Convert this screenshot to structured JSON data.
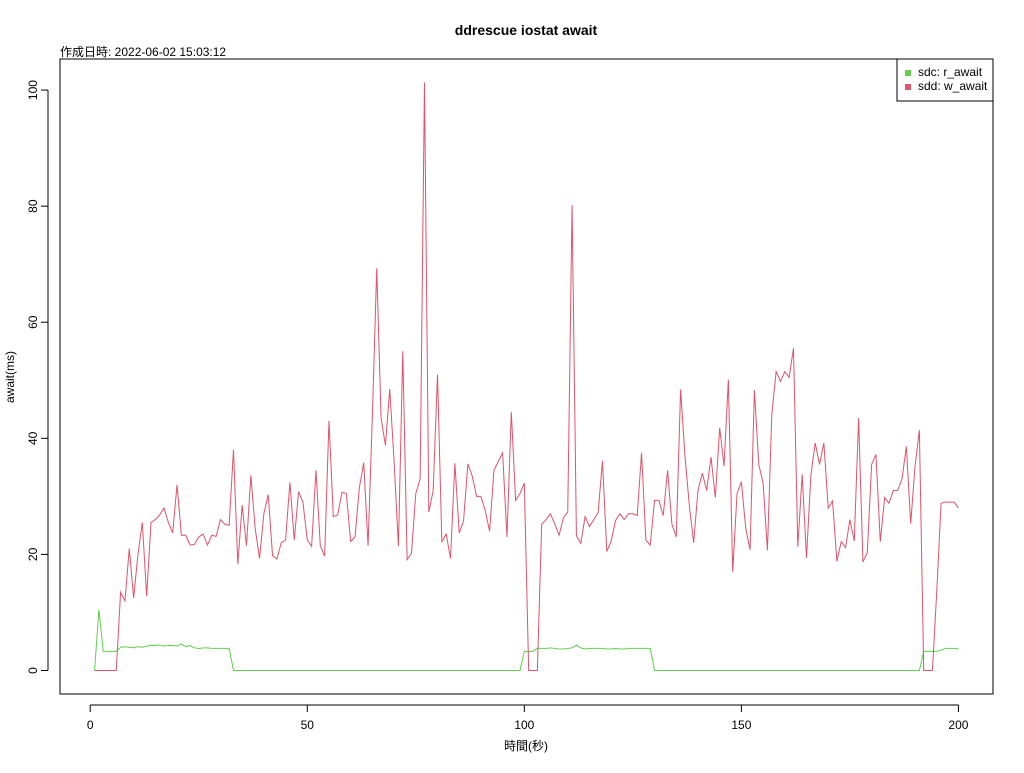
{
  "chart_data": {
    "type": "line",
    "title": "ddrescue iostat await",
    "subtitle": "作成日時: 2022-06-02 15:03:12",
    "x_label": "時間(秒)",
    "y_label": "await(ms)",
    "x": [
      1,
      2,
      3,
      4,
      5,
      6,
      7,
      8,
      9,
      10,
      11,
      12,
      13,
      14,
      15,
      16,
      17,
      18,
      19,
      20,
      21,
      22,
      23,
      24,
      25,
      26,
      27,
      28,
      29,
      30,
      31,
      32,
      33,
      34,
      35,
      36,
      37,
      38,
      39,
      40,
      41,
      42,
      43,
      44,
      45,
      46,
      47,
      48,
      49,
      50,
      51,
      52,
      53,
      54,
      55,
      56,
      57,
      58,
      59,
      60,
      61,
      62,
      63,
      64,
      65,
      66,
      67,
      68,
      69,
      70,
      71,
      72,
      73,
      74,
      75,
      76,
      77,
      78,
      79,
      80,
      81,
      82,
      83,
      84,
      85,
      86,
      87,
      88,
      89,
      90,
      91,
      92,
      93,
      94,
      95,
      96,
      97,
      98,
      99,
      100,
      101,
      102,
      103,
      104,
      105,
      106,
      107,
      108,
      109,
      110,
      111,
      112,
      113,
      114,
      115,
      116,
      117,
      118,
      119,
      120,
      121,
      122,
      123,
      124,
      125,
      126,
      127,
      128,
      129,
      130,
      131,
      132,
      133,
      134,
      135,
      136,
      137,
      138,
      139,
      140,
      141,
      142,
      143,
      144,
      145,
      146,
      147,
      148,
      149,
      150,
      151,
      152,
      153,
      154,
      155,
      156,
      157,
      158,
      159,
      160,
      161,
      162,
      163,
      164,
      165,
      166,
      167,
      168,
      169,
      170,
      171,
      172,
      173,
      174,
      175,
      176,
      177,
      178,
      179,
      180,
      181,
      182,
      183,
      184,
      185,
      186,
      187,
      188,
      189,
      190,
      191,
      192,
      193,
      194,
      195,
      196,
      197,
      198,
      199,
      200
    ],
    "series": [
      {
        "name": "sdc: r_await",
        "color": "#61D04F",
        "values": [
          0,
          10.5,
          3.3,
          3.3,
          3.3,
          3.3,
          4.0,
          4.1,
          4.0,
          3.9,
          4.1,
          4.0,
          4.2,
          4.3,
          4.3,
          4.4,
          4.2,
          4.3,
          4.3,
          4.2,
          4.6,
          4.1,
          4.3,
          3.9,
          3.8,
          3.9,
          3.9,
          3.8,
          3.8,
          3.8,
          3.8,
          3.8,
          0,
          0,
          0,
          0,
          0,
          0,
          0,
          0,
          0,
          0,
          0,
          0,
          0,
          0,
          0,
          0,
          0,
          0,
          0,
          0,
          0,
          0,
          0,
          0,
          0,
          0,
          0,
          0,
          0,
          0,
          0,
          0,
          0,
          0,
          0,
          0,
          0,
          0,
          0,
          0,
          0,
          0,
          0,
          0,
          0,
          0,
          0,
          0,
          0,
          0,
          0,
          0,
          0,
          0,
          0,
          0,
          0,
          0,
          0,
          0,
          0,
          0,
          0,
          0,
          0,
          0,
          0,
          3.3,
          3.3,
          3.3,
          3.8,
          3.8,
          3.8,
          3.9,
          3.8,
          3.7,
          3.7,
          3.8,
          3.9,
          4.4,
          3.9,
          3.7,
          3.8,
          3.8,
          3.8,
          3.8,
          3.7,
          3.7,
          3.8,
          3.7,
          3.7,
          3.8,
          3.8,
          3.8,
          3.8,
          3.8,
          3.8,
          0,
          0,
          0,
          0,
          0,
          0,
          0,
          0,
          0,
          0,
          0,
          0,
          0,
          0,
          0,
          0,
          0,
          0,
          0,
          0,
          0,
          0,
          0,
          0,
          0,
          0,
          0,
          0,
          0,
          0,
          0,
          0,
          0,
          0,
          0,
          0,
          0,
          0,
          0,
          0,
          0,
          0,
          0,
          0,
          0,
          0,
          0,
          0,
          0,
          0,
          0,
          0,
          0,
          0,
          0,
          0,
          0,
          0,
          0,
          0,
          0,
          0,
          3.3,
          3.3,
          3.3,
          3.3,
          3.5,
          3.8,
          3.8,
          3.8,
          3.7
        ]
      },
      {
        "name": "sdd: w_await",
        "color": "#DF536B",
        "values": [
          0,
          0,
          0,
          0,
          0,
          0,
          13.5,
          12,
          21,
          12.5,
          20,
          25.5,
          12.8,
          25.5,
          26,
          26.8,
          28,
          25.5,
          23.7,
          32,
          23.3,
          23.3,
          21.6,
          21.7,
          23,
          23.5,
          21.6,
          23.3,
          23.1,
          26,
          25.2,
          25,
          38,
          18.3,
          28.5,
          21.5,
          33.6,
          24.5,
          19.3,
          27,
          30.3,
          19.8,
          19.2,
          22,
          22.5,
          32.4,
          22.5,
          30.8,
          29,
          22.5,
          21.4,
          34.5,
          21.5,
          19.7,
          43,
          26.5,
          26.8,
          30.7,
          30.5,
          22.2,
          23,
          31.5,
          35.8,
          21.5,
          44,
          69.3,
          43.5,
          38.8,
          48.5,
          36,
          21.4,
          55,
          19.1,
          20.2,
          30.5,
          33,
          101.3,
          27.3,
          31,
          51,
          22.2,
          23.5,
          19.3,
          35.7,
          23.7,
          25.8,
          35.6,
          33.5,
          30,
          30,
          27.5,
          24,
          34.5,
          36,
          37.5,
          23,
          44.5,
          29.3,
          30.5,
          32.3,
          0,
          0,
          0,
          25.2,
          26,
          27,
          25.3,
          23.3,
          26.3,
          27.3,
          80.2,
          23.2,
          21.9,
          26.5,
          24.8,
          26,
          27.2,
          36.1,
          20.5,
          22.3,
          25.8,
          27,
          26,
          27,
          27,
          26.7,
          37.5,
          22.5,
          21.6,
          29.3,
          29.3,
          26.7,
          34.5,
          25.2,
          23,
          48.4,
          37,
          28.5,
          22,
          31,
          34,
          31,
          36.8,
          29.8,
          41.8,
          35.2,
          50.1,
          17,
          30.5,
          32.5,
          24.5,
          20.8,
          48.3,
          35.5,
          32.3,
          20.7,
          44,
          51.5,
          49.8,
          51.5,
          50.5,
          55.5,
          21.3,
          33.8,
          19.4,
          33.6,
          39.2,
          35.5,
          39.2,
          28,
          29.2,
          18.8,
          22.2,
          21.2,
          26,
          22.3,
          43.5,
          18.7,
          20.3,
          35.5,
          37.2,
          22.2,
          29.8,
          28.8,
          31,
          31,
          33,
          38.6,
          25.3,
          35.2,
          41.4,
          0,
          0,
          0,
          13.5,
          28.8,
          29,
          29,
          29,
          28
        ]
      }
    ],
    "xlim": [
      -6.96,
      207.96
    ],
    "ylim": [
      -4.05,
      105.35
    ],
    "xticks": [
      0,
      50,
      100,
      150,
      200
    ],
    "yticks": [
      0,
      20,
      40,
      60,
      80,
      100
    ],
    "legend": "topright"
  }
}
